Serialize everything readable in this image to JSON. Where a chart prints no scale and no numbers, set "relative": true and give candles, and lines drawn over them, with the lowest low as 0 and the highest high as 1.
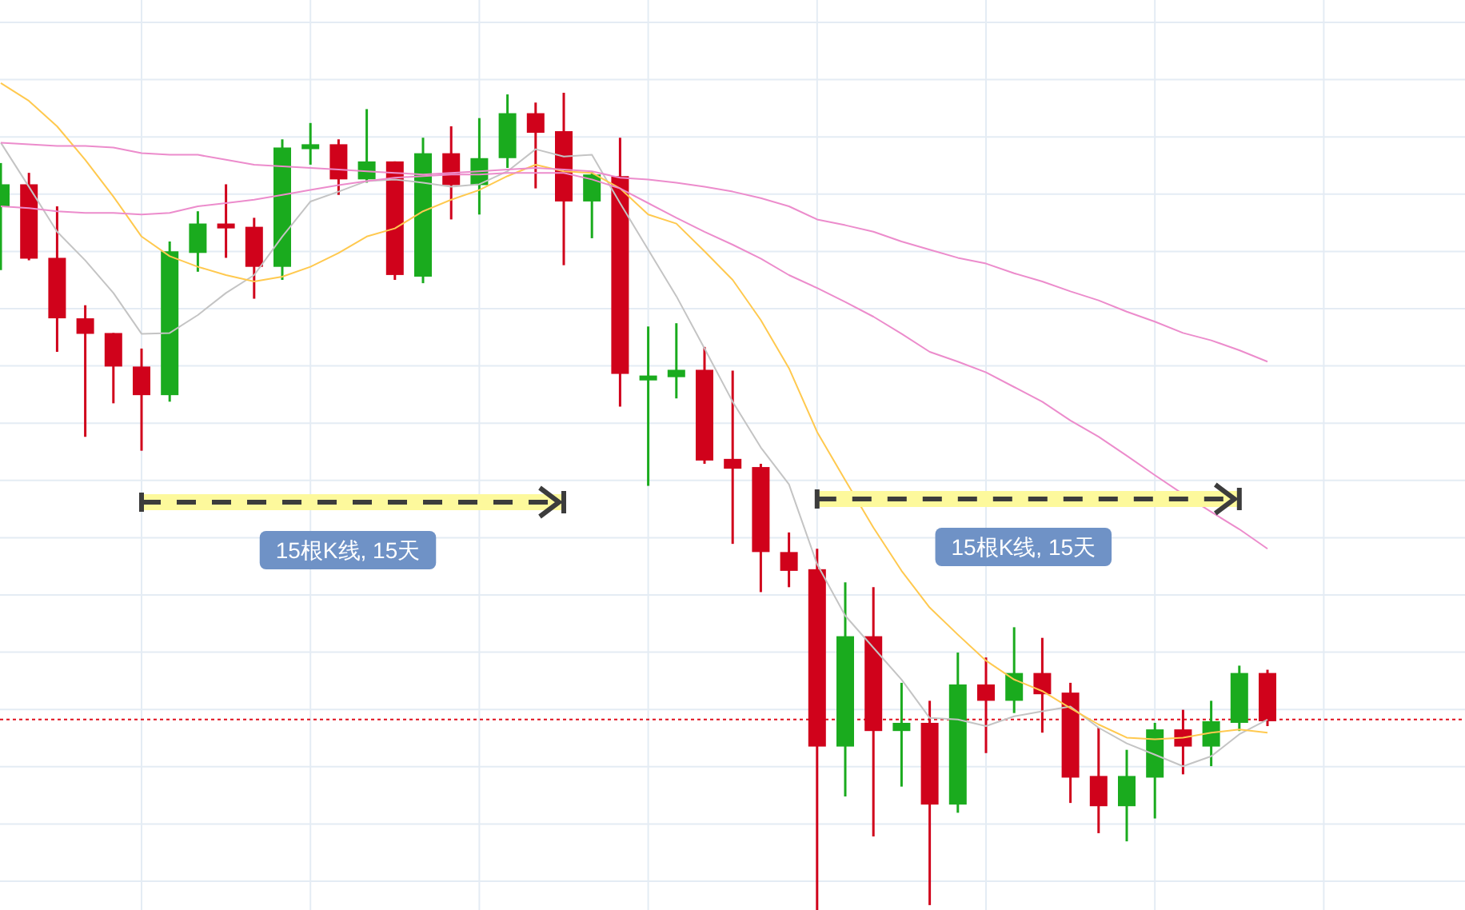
{
  "chart_data": {
    "type": "candlestick",
    "relative": true,
    "grid": true,
    "categories": [
      null,
      null,
      null,
      null,
      null,
      null,
      null,
      null,
      null,
      null,
      null,
      null,
      null,
      null,
      null,
      null,
      null,
      null,
      null,
      null,
      null,
      null,
      null,
      null,
      null,
      null,
      null,
      null,
      null,
      null,
      null,
      null,
      null,
      null,
      null,
      null,
      null,
      null,
      null,
      null,
      null,
      null,
      null,
      null,
      null,
      null
    ],
    "ohlc": [
      [
        0.861,
        0.914,
        0.783,
        0.888
      ],
      [
        0.888,
        0.902,
        0.795,
        0.797
      ],
      [
        0.798,
        0.861,
        0.683,
        0.724
      ],
      [
        0.724,
        0.74,
        0.579,
        0.705
      ],
      [
        0.706,
        0.706,
        0.62,
        0.665
      ],
      [
        0.665,
        0.687,
        0.562,
        0.63
      ],
      [
        0.63,
        0.818,
        0.622,
        0.806
      ],
      [
        0.804,
        0.855,
        0.781,
        0.84
      ],
      [
        0.84,
        0.888,
        0.798,
        0.834
      ],
      [
        0.836,
        0.847,
        0.748,
        0.787
      ],
      [
        0.787,
        0.943,
        0.771,
        0.933
      ],
      [
        0.931,
        0.963,
        0.912,
        0.937
      ],
      [
        0.937,
        0.943,
        0.875,
        0.894
      ],
      [
        0.894,
        0.98,
        0.89,
        0.916
      ],
      [
        0.916,
        0.916,
        0.771,
        0.777
      ],
      [
        0.775,
        0.945,
        0.767,
        0.926
      ],
      [
        0.926,
        0.959,
        0.845,
        0.887
      ],
      [
        0.887,
        0.969,
        0.851,
        0.92
      ],
      [
        0.92,
        0.998,
        0.908,
        0.975
      ],
      [
        0.975,
        0.988,
        0.883,
        0.951
      ],
      [
        0.953,
        1.0,
        0.789,
        0.867
      ],
      [
        0.867,
        0.904,
        0.822,
        0.9
      ],
      [
        0.898,
        0.945,
        0.616,
        0.656
      ],
      [
        0.648,
        0.714,
        0.519,
        0.654
      ],
      [
        0.652,
        0.718,
        0.626,
        0.661
      ],
      [
        0.661,
        0.689,
        0.546,
        0.55
      ],
      [
        0.552,
        0.66,
        0.448,
        0.54
      ],
      [
        0.542,
        0.546,
        0.389,
        0.438
      ],
      [
        0.438,
        0.462,
        0.395,
        0.415
      ],
      [
        0.417,
        0.442,
        0,
        0.2
      ],
      [
        0.2,
        0.401,
        0.139,
        0.335
      ],
      [
        0.335,
        0.395,
        0.09,
        0.219
      ],
      [
        0.219,
        0.278,
        0.151,
        0.229
      ],
      [
        0.229,
        0.256,
        0.006,
        0.129
      ],
      [
        0.129,
        0.315,
        0.119,
        0.276
      ],
      [
        0.276,
        0.309,
        0.192,
        0.256
      ],
      [
        0.256,
        0.346,
        0.241,
        0.29
      ],
      [
        0.29,
        0.333,
        0.217,
        0.264
      ],
      [
        0.266,
        0.278,
        0.131,
        0.162
      ],
      [
        0.164,
        0.223,
        0.094,
        0.127
      ],
      [
        0.127,
        0.196,
        0.084,
        0.164
      ],
      [
        0.162,
        0.229,
        0.112,
        0.221
      ],
      [
        0.221,
        0.245,
        0.166,
        0.2
      ],
      [
        0.2,
        0.256,
        0.176,
        0.231
      ],
      [
        0.229,
        0.299,
        0.219,
        0.29
      ],
      [
        0.29,
        0.294,
        0.225,
        0.231
      ]
    ],
    "colors": [
      "#1aab1e",
      "#d0021b",
      "#d0021b",
      "#d0021b",
      "#d0021b",
      "#d0021b",
      "#1aab1e",
      "#1aab1e",
      "#d0021b",
      "#d0021b",
      "#1aab1e",
      "#1aab1e",
      "#d0021b",
      "#1aab1e",
      "#d0021b",
      "#1aab1e",
      "#d0021b",
      "#1aab1e",
      "#1aab1e",
      "#d0021b",
      "#d0021b",
      "#1aab1e",
      "#d0021b",
      "#1aab1e",
      "#1aab1e",
      "#d0021b",
      "#d0021b",
      "#d0021b",
      "#d0021b",
      "#d0021b",
      "#1aab1e",
      "#d0021b",
      "#1aab1e",
      "#d0021b",
      "#1aab1e",
      "#d0021b",
      "#1aab1e",
      "#d0021b",
      "#d0021b",
      "#d0021b",
      "#1aab1e",
      "#1aab1e",
      "#d0021b",
      "#1aab1e",
      "#1aab1e",
      "#d0021b"
    ],
    "series": [
      {
        "type": "line",
        "color": "#c4c4c4",
        "values": [
          0.939,
          0.885,
          0.83,
          0.795,
          0.755,
          0.705,
          0.706,
          0.728,
          0.755,
          0.777,
          0.824,
          0.867,
          0.879,
          0.892,
          0.894,
          0.89,
          0.885,
          0.888,
          0.904,
          0.931,
          0.922,
          0.924,
          0.865,
          0.808,
          0.751,
          0.687,
          0.622,
          0.566,
          0.521,
          0.423,
          0.36,
          0.321,
          0.282,
          0.235,
          0.233,
          0.225,
          0.237,
          0.243,
          0.249,
          0.223,
          0.204,
          0.19,
          0.176,
          0.188,
          0.215,
          0.233
        ]
      },
      {
        "type": "line",
        "color": "#ffc94f",
        "values": [
          1.012,
          0.99,
          0.959,
          0.918,
          0.873,
          0.824,
          0.8,
          0.787,
          0.777,
          0.769,
          0.775,
          0.787,
          0.804,
          0.824,
          0.834,
          0.855,
          0.869,
          0.881,
          0.898,
          0.912,
          0.904,
          0.902,
          0.883,
          0.851,
          0.84,
          0.806,
          0.771,
          0.722,
          0.663,
          0.585,
          0.526,
          0.468,
          0.415,
          0.37,
          0.337,
          0.305,
          0.282,
          0.268,
          0.247,
          0.227,
          0.211,
          0.209,
          0.211,
          0.217,
          0.221,
          0.217
        ]
      },
      {
        "type": "line",
        "color": "#ec8ccc",
        "values": [
          0.861,
          0.859,
          0.855,
          0.853,
          0.853,
          0.851,
          0.853,
          0.861,
          0.865,
          0.869,
          0.875,
          0.881,
          0.887,
          0.892,
          0.896,
          0.898,
          0.9,
          0.9,
          0.902,
          0.902,
          0.902,
          0.894,
          0.883,
          0.865,
          0.847,
          0.83,
          0.814,
          0.797,
          0.777,
          0.761,
          0.744,
          0.726,
          0.705,
          0.683,
          0.671,
          0.658,
          0.64,
          0.622,
          0.599,
          0.579,
          0.556,
          0.532,
          0.509,
          0.487,
          0.466,
          0.442
        ]
      },
      {
        "type": "line",
        "color": "#ec8ccc",
        "values": [
          0.939,
          0.937,
          0.935,
          0.935,
          0.933,
          0.926,
          0.924,
          0.924,
          0.918,
          0.912,
          0.91,
          0.908,
          0.906,
          0.904,
          0.902,
          0.9,
          0.902,
          0.904,
          0.906,
          0.908,
          0.906,
          0.904,
          0.896,
          0.894,
          0.89,
          0.885,
          0.879,
          0.871,
          0.861,
          0.845,
          0.838,
          0.83,
          0.818,
          0.808,
          0.798,
          0.791,
          0.779,
          0.769,
          0.757,
          0.746,
          0.732,
          0.72,
          0.706,
          0.697,
          0.685,
          0.671
        ]
      }
    ],
    "ref_lines": [
      {
        "axis": "y",
        "value": 0.233,
        "color": "#e0101e",
        "line_style": "dotted"
      }
    ],
    "annotations": [
      "15根K线, 15天",
      "15根K线, 15天"
    ]
  }
}
